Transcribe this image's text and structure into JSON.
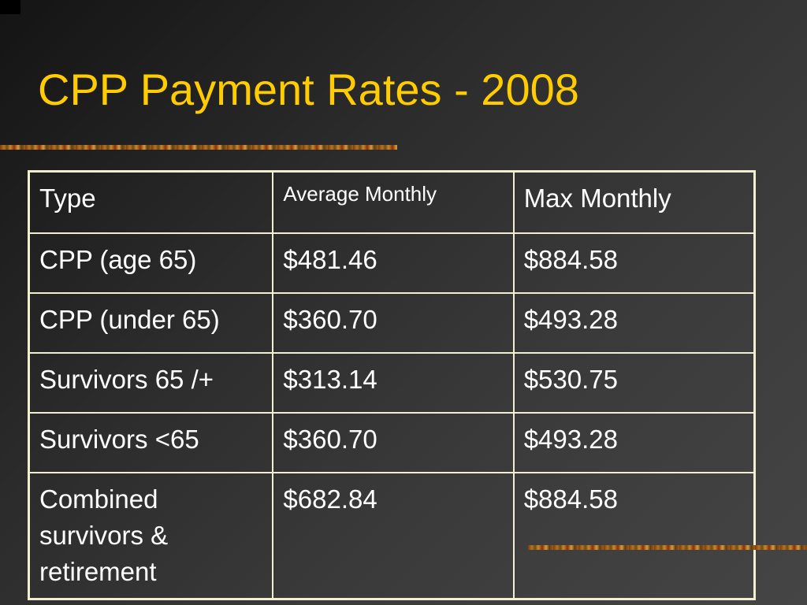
{
  "slide": {
    "title": "CPP Payment Rates - 2008"
  },
  "table": {
    "headers": [
      "Type",
      "Average Monthly",
      "Max Monthly"
    ],
    "rows": [
      [
        "CPP (age 65)",
        "$481.46",
        "$884.58"
      ],
      [
        "CPP (under 65)",
        "$360.70",
        "$493.28"
      ],
      [
        "Survivors 65 /+",
        "$313.14",
        "$530.75"
      ],
      [
        "Survivors <65",
        "$360.70",
        "$493.28"
      ],
      [
        "Combined survivors & retirement",
        "$682.84",
        "$884.58"
      ]
    ]
  },
  "colors": {
    "title": "#ffcc00",
    "text": "#ffffff",
    "border": "#f2eed0",
    "background": "#3a3a3a"
  }
}
